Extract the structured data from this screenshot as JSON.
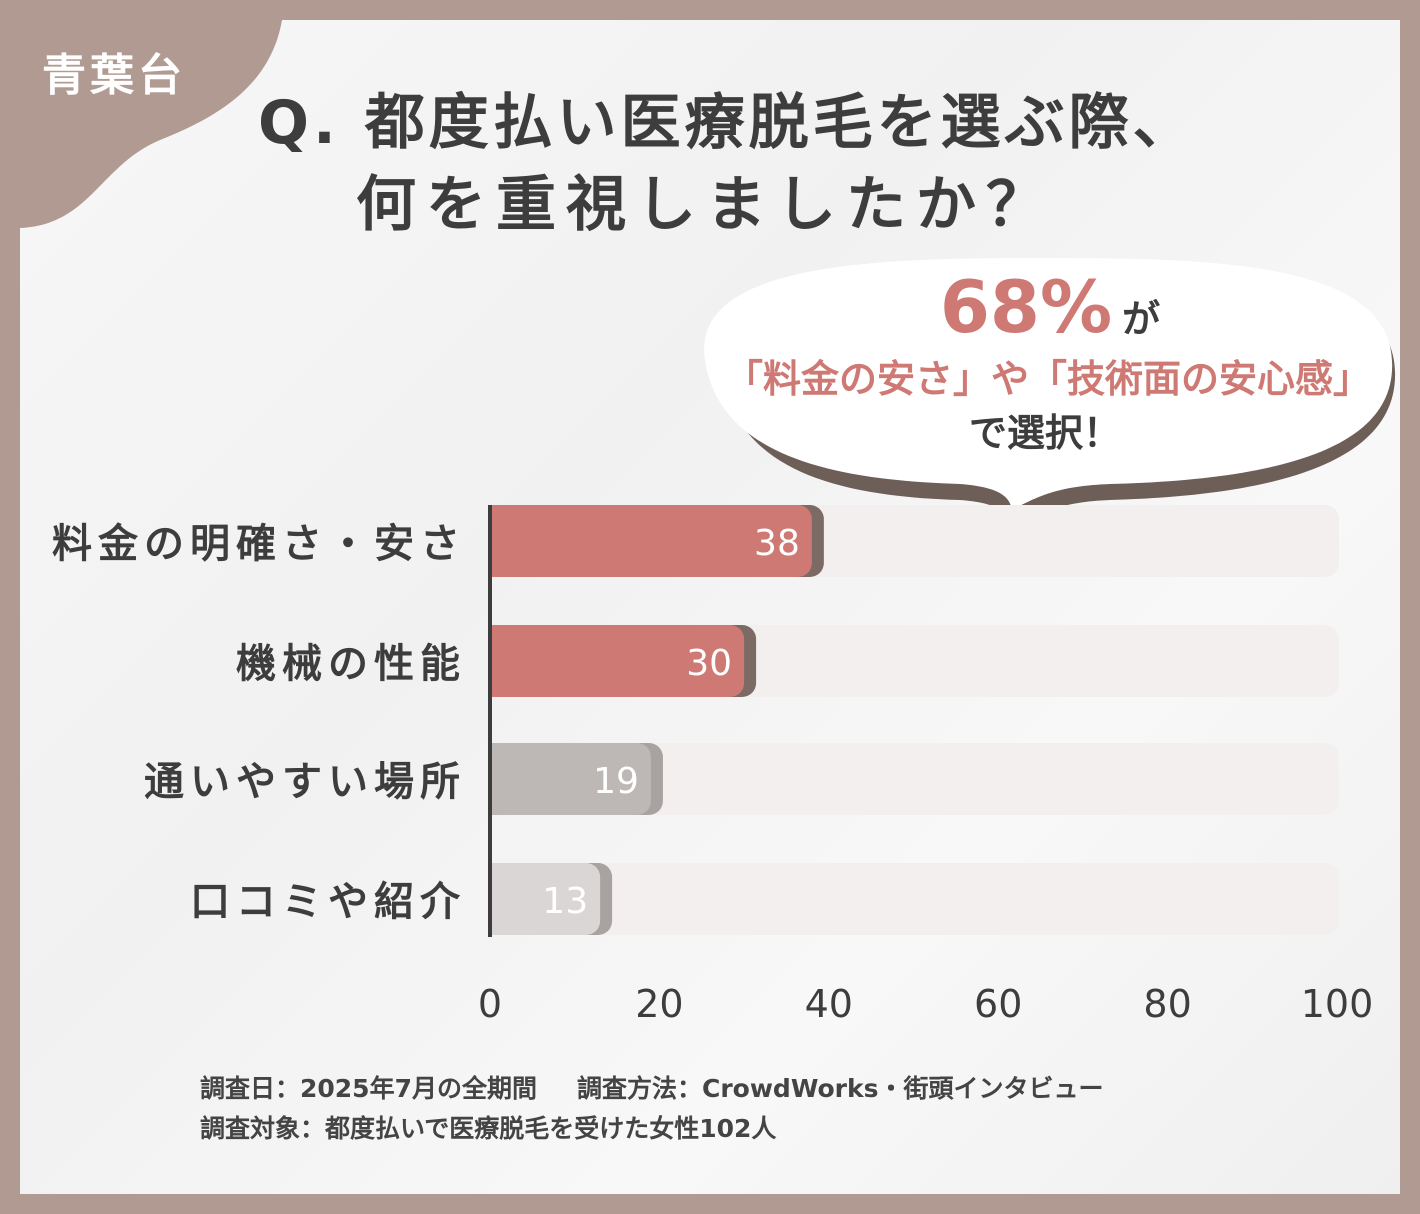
{
  "badge": "青葉台",
  "title_line1": "Q. 都度払い医療脱毛を選ぶ際、",
  "title_line2": "何を重視しましたか？",
  "callout": {
    "percent": "68%",
    "ga": "が",
    "line2": "「料金の安さ」や「技術面の安心感」",
    "line3": "で選択！"
  },
  "chart_data": {
    "type": "bar",
    "orientation": "horizontal",
    "categories": [
      "料金の明確さ・安さ",
      "機械の性能",
      "通いやすい場所",
      "口コミや紹介"
    ],
    "values": [
      38,
      30,
      19,
      13
    ],
    "xlim": [
      0,
      100
    ],
    "xticks": [
      "0",
      "20",
      "40",
      "60",
      "80",
      "100"
    ],
    "bar_colors": [
      "#cf7974",
      "#cf7974",
      "#bdb8b6",
      "#dad6d5"
    ],
    "track_color": "#f2efee",
    "grid": false
  },
  "footer": {
    "date": "調査日：2025年7月の全期間",
    "method": "調査方法：CrowdWorks・街頭インタビュー",
    "target": "調査対象：都度払いで医療脱毛を受けた女性102人"
  }
}
